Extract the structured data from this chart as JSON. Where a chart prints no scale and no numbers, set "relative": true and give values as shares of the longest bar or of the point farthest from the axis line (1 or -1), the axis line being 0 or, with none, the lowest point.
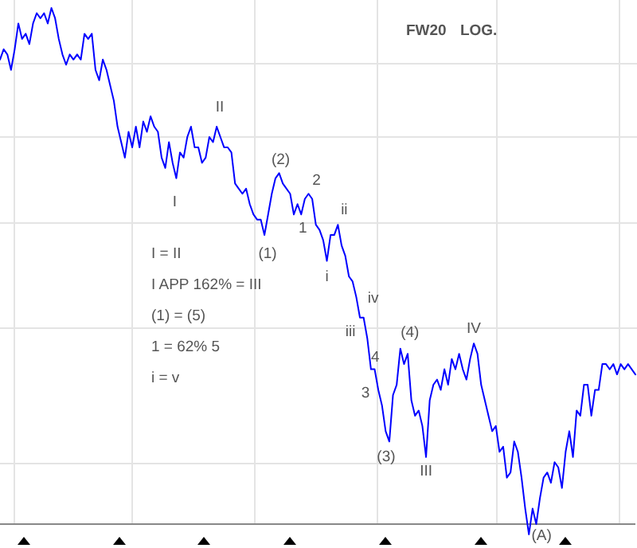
{
  "chart_data": {
    "type": "line",
    "title": "FW20 LOG.",
    "relative": true,
    "grid": true,
    "categories": [
      null,
      null,
      null,
      null,
      null,
      null,
      null,
      null,
      null,
      null,
      null,
      null,
      null,
      null,
      null,
      null,
      null,
      null,
      null,
      null,
      null,
      null,
      null,
      null,
      null,
      null,
      null,
      null,
      null,
      null,
      null,
      null,
      null,
      null,
      null,
      null,
      null,
      null,
      null,
      null,
      null,
      null,
      null,
      null,
      null,
      null,
      null,
      null,
      null,
      null,
      null,
      null,
      null,
      null,
      null,
      null,
      null,
      null,
      null,
      null,
      null,
      null,
      null,
      null,
      null,
      null,
      null,
      null,
      null,
      null,
      null,
      null,
      null,
      null,
      null,
      null,
      null,
      null,
      null,
      null,
      null,
      null,
      null,
      null,
      null,
      null,
      null,
      null,
      null,
      null,
      null,
      null,
      null,
      null,
      null,
      null,
      null,
      null,
      null,
      null,
      null,
      null,
      null,
      null,
      null,
      null,
      null,
      null,
      null,
      null,
      null,
      null,
      null,
      null,
      null,
      null,
      null,
      null,
      null,
      null,
      null,
      null,
      null,
      null,
      null,
      null,
      null,
      null,
      null,
      null,
      null,
      null,
      null,
      null,
      null,
      null,
      null,
      null,
      null,
      null,
      null,
      null,
      null,
      null,
      null,
      null,
      null,
      null,
      null,
      null,
      null,
      null,
      null,
      null,
      null,
      null,
      null,
      null,
      null,
      null,
      null,
      null,
      null,
      null,
      null,
      null,
      null,
      null,
      null,
      null,
      null,
      null,
      null,
      null
    ],
    "series": [
      {
        "color": "#0000ff",
        "values": [
          0.9,
          0.92,
          0.91,
          0.88,
          0.92,
          0.97,
          0.94,
          0.95,
          0.93,
          0.97,
          0.99,
          0.98,
          0.99,
          0.97,
          1,
          0.98,
          0.94,
          0.91,
          0.89,
          0.91,
          0.9,
          0.91,
          0.9,
          0.95,
          0.94,
          0.95,
          0.88,
          0.86,
          0.9,
          0.88,
          0.85,
          0.82,
          0.77,
          0.74,
          0.71,
          0.76,
          0.73,
          0.77,
          0.73,
          0.78,
          0.76,
          0.79,
          0.77,
          0.76,
          0.71,
          0.69,
          0.74,
          0.7,
          0.67,
          0.72,
          0.71,
          0.75,
          0.77,
          0.73,
          0.73,
          0.7,
          0.71,
          0.75,
          0.74,
          0.77,
          0.75,
          0.73,
          0.73,
          0.72,
          0.66,
          0.65,
          0.64,
          0.65,
          0.62,
          0.6,
          0.59,
          0.59,
          0.56,
          0.6,
          0.64,
          0.67,
          0.68,
          0.66,
          0.65,
          0.64,
          0.6,
          0.62,
          0.6,
          0.63,
          0.64,
          0.63,
          0.58,
          0.57,
          0.55,
          0.51,
          0.56,
          0.56,
          0.58,
          0.54,
          0.52,
          0.48,
          0.47,
          0.44,
          0.4,
          0.4,
          0.36,
          0.3,
          0.3,
          0.26,
          0.23,
          0.18,
          0.16,
          0.25,
          0.27,
          0.34,
          0.31,
          0.33,
          0.24,
          0.21,
          0.22,
          0.19,
          0.13,
          0.24,
          0.27,
          0.28,
          0.26,
          0.3,
          0.27,
          0.32,
          0.3,
          0.33,
          0.3,
          0.28,
          0.32,
          0.35,
          0.33,
          0.27,
          0.24,
          0.21,
          0.18,
          0.19,
          0.14,
          0.15,
          0.09,
          0.1,
          0.16,
          0.14,
          0.09,
          0.03,
          -0.02,
          0.03,
          0.0,
          0.05,
          0.09,
          0.1,
          0.08,
          0.12,
          0.11,
          0.07,
          0.14,
          0.18,
          0.13,
          0.22,
          0.21,
          0.27,
          0.27,
          0.21,
          0.26,
          0.26,
          0.31,
          0.31,
          0.3,
          0.31,
          0.29,
          0.31,
          0.3,
          0.31,
          0.3,
          0.29
        ]
      }
    ],
    "annotations": [
      "I",
      "II",
      "(2)",
      "2",
      "(1)",
      "1",
      "ii",
      "i",
      "iv",
      "iii",
      "(4)",
      "IV",
      "4",
      "3",
      "(3)",
      "III",
      "(A)",
      "I = II",
      "I APP 162% = III",
      "(1) = (5)",
      "1 = 62% 5",
      "i = v"
    ]
  }
}
